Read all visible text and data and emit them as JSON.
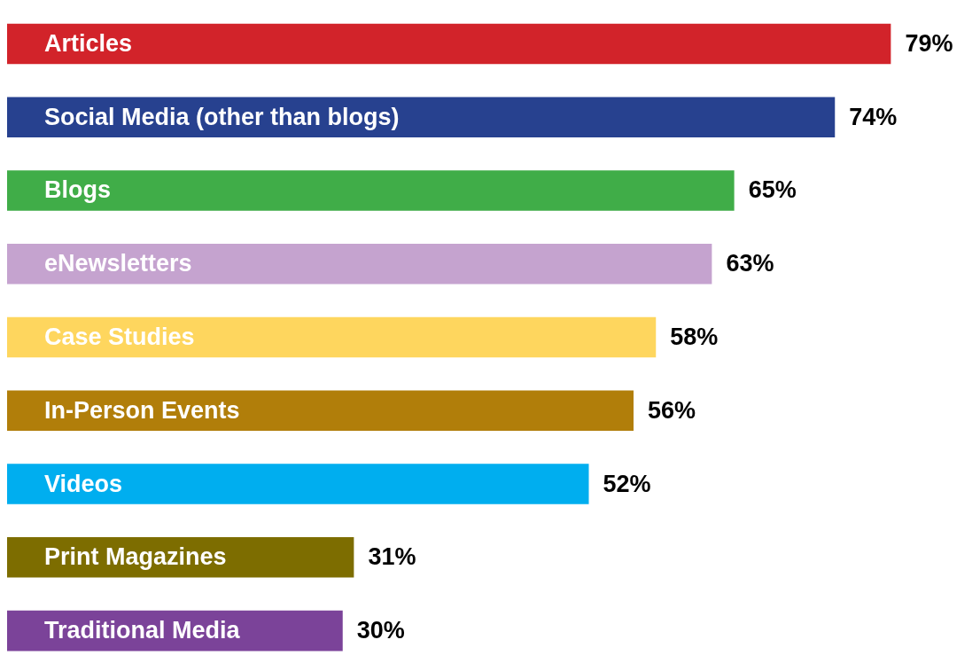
{
  "chart_data": {
    "type": "bar",
    "orientation": "horizontal",
    "categories": [
      "Articles",
      "Social Media (other than blogs)",
      "Blogs",
      "eNewsletters",
      "Case Studies",
      "In-Person Events",
      "Videos",
      "Print Magazines",
      "Traditional Media"
    ],
    "values": [
      79,
      74,
      65,
      63,
      58,
      56,
      52,
      31,
      30
    ],
    "colors": [
      "#d2232a",
      "#27418f",
      "#40ad48",
      "#c5a3cf",
      "#fed65e",
      "#b17e0a",
      "#00aeef",
      "#7d6d00",
      "#7b4399"
    ],
    "value_labels": [
      "79%",
      "74%",
      "65%",
      "63%",
      "58%",
      "56%",
      "52%",
      "31%",
      "30%"
    ]
  }
}
